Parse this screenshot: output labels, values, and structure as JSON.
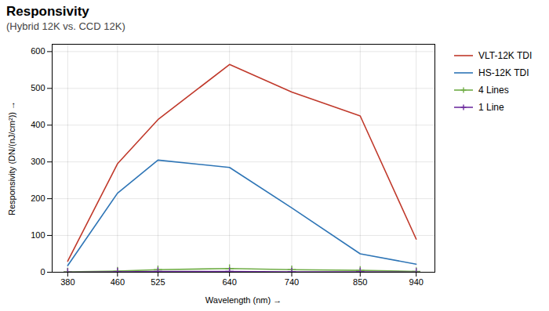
{
  "chart_data": {
    "type": "line",
    "title": "Responsivity",
    "subtitle": "(Hybrid 12K vs. CCD 12K)",
    "x_label": "Wavelength (nm)",
    "y_label": "Responsivity (DN/(nJ/cm²))",
    "x": [
      380,
      460,
      525,
      640,
      740,
      850,
      940
    ],
    "series": [
      {
        "name": "VLT-12K TDI",
        "color": "#c0392b",
        "values": [
          30,
          295,
          415,
          565,
          490,
          425,
          90
        ]
      },
      {
        "name": "HS-12K TDI",
        "color": "#2e75b6",
        "values": [
          18,
          215,
          305,
          285,
          175,
          50,
          22
        ]
      },
      {
        "name": "4 Lines",
        "color": "#70ad47",
        "marker": "plus",
        "values": [
          1,
          3,
          7,
          10,
          7,
          5,
          2
        ]
      },
      {
        "name": "1 Line",
        "color": "#7030a0",
        "marker": "plus",
        "values": [
          0,
          1,
          2,
          2,
          1,
          1,
          0
        ]
      }
    ],
    "xlim": [
      355,
      970
    ],
    "ylim": [
      0,
      620
    ],
    "xticks": [
      380,
      460,
      525,
      640,
      740,
      850,
      940
    ],
    "yticks": [
      0,
      100,
      200,
      300,
      400,
      500,
      600
    ],
    "grid": true,
    "legend": "right"
  }
}
